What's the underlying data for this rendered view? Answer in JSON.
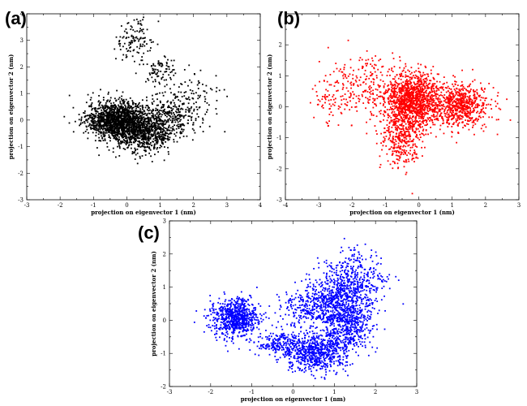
{
  "chart_data": [
    {
      "type": "scatter",
      "panel_label": "(a)",
      "xlabel": "projection on eigenvector 1 (nm)",
      "ylabel": "projection on eigenvector 2 (nm)",
      "xlim": [
        -3,
        4
      ],
      "ylim": [
        -3,
        4
      ],
      "xticks": [
        -3,
        -2,
        -1,
        0,
        1,
        2,
        3,
        4
      ],
      "yticks": [
        -3,
        -2,
        -1,
        0,
        1,
        2,
        3,
        4
      ],
      "grid": false,
      "color": "#000000",
      "series": [
        {
          "clusters": [
            {
              "cx": -0.3,
              "cy": 0.0,
              "sx": 0.45,
              "sy": 0.35,
              "n": 1400
            },
            {
              "cx": 0.5,
              "cy": -0.5,
              "sx": 0.45,
              "sy": 0.35,
              "n": 700
            },
            {
              "cx": 1.2,
              "cy": 0.1,
              "sx": 0.55,
              "sy": 0.4,
              "n": 350
            },
            {
              "cx": 0.2,
              "cy": 3.0,
              "sx": 0.3,
              "sy": 0.4,
              "n": 120
            },
            {
              "cx": 1.0,
              "cy": 1.8,
              "sx": 0.3,
              "sy": 0.3,
              "n": 90
            },
            {
              "cx": 2.0,
              "cy": 0.9,
              "sx": 0.4,
              "sy": 0.4,
              "n": 80
            }
          ]
        }
      ]
    },
    {
      "type": "scatter",
      "panel_label": "(b)",
      "xlabel": "projection on eigenvector 1 (nm)",
      "ylabel": "projection on eigenvector 2 (nm)",
      "xlim": [
        -4,
        3
      ],
      "ylim": [
        -3,
        3
      ],
      "xticks": [
        -4,
        -3,
        -2,
        -1,
        0,
        1,
        2,
        3
      ],
      "yticks": [
        -3,
        -2,
        -1,
        0,
        1,
        2,
        3
      ],
      "grid": false,
      "color": "#ff0000",
      "series": [
        {
          "clusters": [
            {
              "cx": -0.2,
              "cy": 0.2,
              "sx": 0.45,
              "sy": 0.45,
              "n": 1300
            },
            {
              "cx": 1.3,
              "cy": 0.05,
              "sx": 0.4,
              "sy": 0.35,
              "n": 650
            },
            {
              "cx": -0.5,
              "cy": -1.0,
              "sx": 0.3,
              "sy": 0.5,
              "n": 350
            },
            {
              "cx": -1.7,
              "cy": 0.7,
              "sx": 0.5,
              "sy": 0.55,
              "n": 220
            },
            {
              "cx": -2.8,
              "cy": 0.2,
              "sx": 0.3,
              "sy": 0.4,
              "n": 50
            }
          ]
        }
      ]
    },
    {
      "type": "scatter",
      "panel_label": "(c)",
      "xlabel": "projection on eigenvector 1 (nm)",
      "ylabel": "projection on eigenvector 2 (nm)",
      "xlim": [
        -3,
        3
      ],
      "ylim": [
        -2,
        3
      ],
      "xticks": [
        -3,
        -2,
        -1,
        0,
        1,
        2,
        3
      ],
      "yticks": [
        -2,
        -1,
        0,
        1,
        2,
        3
      ],
      "grid": false,
      "color": "#0000ff",
      "series": [
        {
          "clusters": [
            {
              "cx": -1.4,
              "cy": 0.05,
              "sx": 0.28,
              "sy": 0.3,
              "n": 750
            },
            {
              "cx": -0.3,
              "cy": -0.7,
              "sx": 0.3,
              "sy": 0.2,
              "n": 220
            },
            {
              "cx": 0.6,
              "cy": -0.95,
              "sx": 0.4,
              "sy": 0.3,
              "n": 650
            },
            {
              "cx": 1.3,
              "cy": -0.2,
              "sx": 0.3,
              "sy": 0.4,
              "n": 500
            },
            {
              "cx": 1.0,
              "cy": 0.6,
              "sx": 0.45,
              "sy": 0.35,
              "n": 550
            },
            {
              "cx": 1.5,
              "cy": 1.3,
              "sx": 0.35,
              "sy": 0.4,
              "n": 350
            },
            {
              "cx": 0.3,
              "cy": 0.3,
              "sx": 0.3,
              "sy": 0.3,
              "n": 150
            }
          ]
        }
      ]
    }
  ]
}
